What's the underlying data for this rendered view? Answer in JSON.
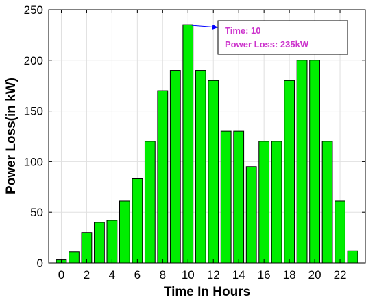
{
  "chart_data": {
    "type": "bar",
    "xlabel": "Time In Hours",
    "ylabel": "Power Loss(in kW)",
    "x": [
      0,
      1,
      2,
      3,
      4,
      5,
      6,
      7,
      8,
      9,
      10,
      11,
      12,
      13,
      14,
      15,
      16,
      17,
      18,
      19,
      20,
      21,
      22,
      23
    ],
    "values": [
      3,
      11,
      30,
      40,
      42,
      61,
      83,
      120,
      170,
      190,
      235,
      190,
      180,
      130,
      130,
      95,
      120,
      120,
      180,
      200,
      200,
      120,
      61,
      12
    ],
    "xticks": [
      0,
      2,
      4,
      6,
      8,
      10,
      12,
      14,
      16,
      18,
      20,
      22
    ],
    "yticks": [
      0,
      50,
      100,
      150,
      200,
      250
    ],
    "ylim": [
      0,
      250
    ],
    "xlim": [
      -1,
      24
    ],
    "grid": true,
    "bar_color": "#00ee00",
    "annotation": {
      "x": 10,
      "line1": "Time: 10",
      "line2": "Power Loss: 235kW",
      "text_color": "#cc33cc",
      "arrow_color": "#0000ff"
    }
  }
}
